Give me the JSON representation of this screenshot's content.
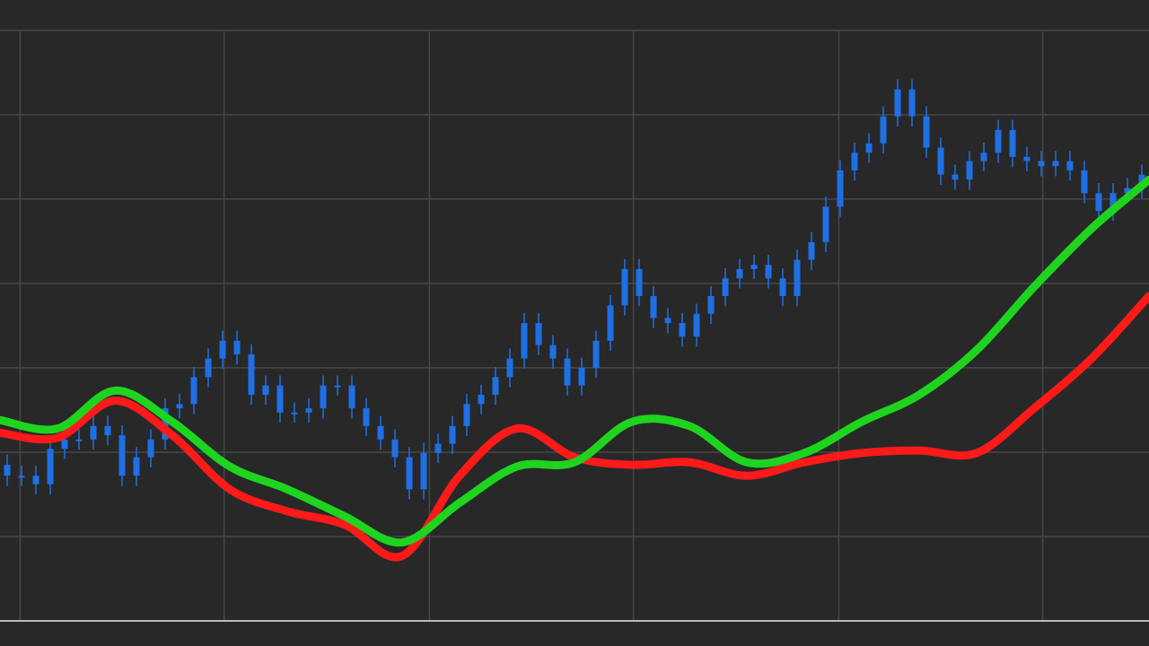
{
  "chart_data": {
    "type": "candlestick",
    "xlim": [
      0,
      80
    ],
    "ylim": [
      0,
      7.36
    ],
    "xticks": [
      1.4,
      15.6,
      29.9,
      44.1,
      58.4,
      72.6
    ],
    "yticks": [
      1,
      2,
      3,
      4,
      5,
      6,
      7
    ],
    "grid": true,
    "color": "#1f6fe5",
    "open": [
      1.85,
      1.72,
      1.72,
      1.62,
      2.04,
      2.15,
      2.15,
      2.31,
      2.2,
      1.72,
      1.94,
      2.15,
      2.52,
      2.57,
      2.89,
      3.11,
      3.32,
      3.16,
      2.68,
      2.79,
      2.47,
      2.47,
      2.52,
      2.79,
      2.79,
      2.52,
      2.31,
      2.15,
      1.94,
      1.56,
      1.99,
      2.1,
      2.31,
      2.57,
      2.68,
      2.89,
      3.11,
      3.53,
      3.27,
      3.11,
      2.79,
      3.0,
      3.32,
      3.74,
      4.17,
      3.85,
      3.59,
      3.53,
      3.37,
      3.64,
      3.85,
      4.06,
      4.17,
      4.22,
      4.06,
      3.85,
      4.28,
      4.49,
      4.91,
      5.34,
      5.55,
      5.66,
      5.98,
      6.3,
      5.98,
      5.61,
      5.29,
      5.23,
      5.45,
      5.55,
      5.82,
      5.5,
      5.45,
      5.39,
      5.45,
      5.34,
      5.07,
      4.86,
      5.07,
      5.13
    ],
    "close": [
      1.72,
      1.72,
      1.62,
      2.04,
      2.15,
      2.15,
      2.31,
      2.2,
      1.72,
      1.94,
      2.15,
      2.52,
      2.57,
      2.89,
      3.11,
      3.32,
      3.16,
      2.68,
      2.79,
      2.47,
      2.47,
      2.52,
      2.79,
      2.79,
      2.52,
      2.31,
      2.15,
      1.94,
      1.56,
      1.99,
      2.1,
      2.31,
      2.57,
      2.68,
      2.89,
      3.11,
      3.53,
      3.27,
      3.11,
      2.79,
      3.0,
      3.32,
      3.74,
      4.17,
      3.85,
      3.59,
      3.53,
      3.37,
      3.64,
      3.85,
      4.06,
      4.17,
      4.22,
      4.06,
      3.85,
      4.28,
      4.49,
      4.91,
      5.34,
      5.55,
      5.66,
      5.98,
      6.3,
      5.98,
      5.61,
      5.29,
      5.23,
      5.45,
      5.55,
      5.82,
      5.5,
      5.45,
      5.39,
      5.45,
      5.34,
      5.07,
      4.86,
      5.07,
      5.13,
      5.29
    ],
    "high": [
      1.97,
      1.84,
      1.84,
      2.16,
      2.27,
      2.27,
      2.43,
      2.43,
      2.32,
      2.06,
      2.27,
      2.64,
      2.69,
      3.01,
      3.23,
      3.44,
      3.44,
      3.28,
      2.91,
      2.91,
      2.59,
      2.64,
      2.91,
      2.91,
      2.91,
      2.64,
      2.43,
      2.27,
      2.06,
      2.11,
      2.22,
      2.43,
      2.69,
      2.8,
      3.01,
      3.23,
      3.65,
      3.65,
      3.39,
      3.23,
      3.12,
      3.44,
      3.86,
      4.29,
      4.29,
      3.97,
      3.71,
      3.65,
      3.76,
      3.97,
      4.18,
      4.29,
      4.34,
      4.34,
      4.18,
      4.4,
      4.61,
      5.03,
      5.46,
      5.67,
      5.78,
      6.1,
      6.42,
      6.42,
      6.1,
      5.73,
      5.41,
      5.57,
      5.67,
      5.94,
      5.94,
      5.62,
      5.57,
      5.57,
      5.57,
      5.46,
      5.19,
      5.19,
      5.25,
      5.41
    ],
    "low": [
      1.6,
      1.6,
      1.5,
      1.5,
      1.92,
      2.03,
      2.03,
      2.08,
      1.6,
      1.6,
      1.82,
      2.03,
      2.4,
      2.45,
      2.77,
      2.99,
      3.04,
      2.56,
      2.56,
      2.35,
      2.35,
      2.35,
      2.4,
      2.67,
      2.4,
      2.19,
      2.03,
      1.82,
      1.44,
      1.44,
      1.87,
      1.98,
      2.19,
      2.45,
      2.56,
      2.77,
      2.99,
      3.15,
      2.99,
      2.67,
      2.67,
      2.88,
      3.2,
      3.62,
      3.73,
      3.47,
      3.41,
      3.25,
      3.25,
      3.52,
      3.73,
      3.94,
      4.05,
      3.94,
      3.73,
      3.73,
      4.16,
      4.37,
      4.79,
      5.22,
      5.43,
      5.54,
      5.86,
      5.86,
      5.49,
      5.17,
      5.11,
      5.11,
      5.33,
      5.43,
      5.38,
      5.33,
      5.27,
      5.27,
      5.22,
      4.95,
      4.74,
      4.74,
      4.95,
      5.01
    ],
    "series": [
      {
        "color": "#ff1a1a",
        "x": [
          0,
          4,
          8,
          12,
          16,
          20,
          24,
          28,
          32,
          36,
          40,
          44,
          48,
          52,
          56,
          60,
          64,
          68,
          72,
          76,
          80
        ],
        "values": [
          2.23,
          2.17,
          2.61,
          2.2,
          1.56,
          1.3,
          1.14,
          0.77,
          1.72,
          2.28,
          1.94,
          1.85,
          1.88,
          1.72,
          1.88,
          1.99,
          2.02,
          1.99,
          2.52,
          3.11,
          3.85
        ]
      },
      {
        "color": "#1ed41e",
        "x": [
          0,
          4,
          8,
          12,
          16,
          20,
          24,
          28,
          32,
          36,
          40,
          44,
          48,
          52,
          56,
          60,
          64,
          68,
          72,
          76,
          80
        ],
        "values": [
          2.38,
          2.28,
          2.73,
          2.36,
          1.83,
          1.56,
          1.24,
          0.93,
          1.4,
          1.83,
          1.88,
          2.36,
          2.31,
          1.88,
          1.99,
          2.36,
          2.68,
          3.21,
          3.96,
          4.65,
          5.23
        ]
      }
    ]
  }
}
